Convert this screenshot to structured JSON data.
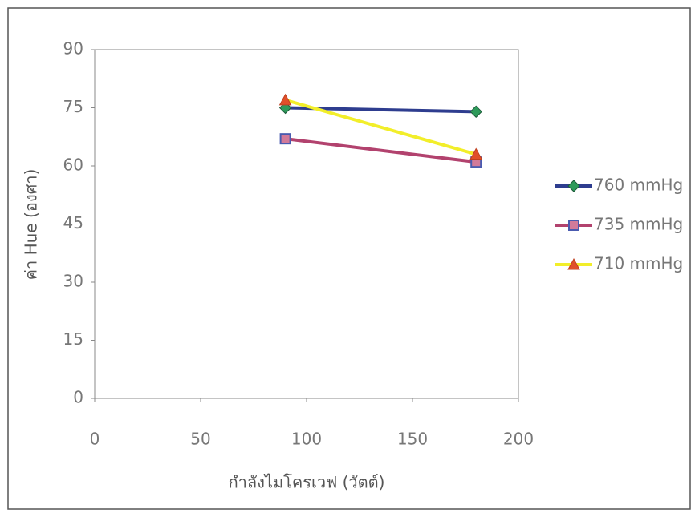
{
  "chart_data": {
    "type": "line",
    "x_label": "กำลังไมโครเวฟ (วัตต์)",
    "y_label": "ค่า Hue (องศา)",
    "x": [
      90,
      180
    ],
    "series": [
      {
        "name": "760 mmHg",
        "color": "#2e3d8f",
        "marker": "diamond",
        "marker_color": "#2e9a5a",
        "values": [
          75,
          74
        ]
      },
      {
        "name": "735 mmHg",
        "color": "#b2426e",
        "marker": "square",
        "marker_color": "#4a5bb0",
        "values": [
          67,
          61
        ]
      },
      {
        "name": "710 mmHg",
        "color": "#f2ee2a",
        "marker": "triangle",
        "marker_color": "#e0502a",
        "values": [
          77,
          63
        ]
      }
    ],
    "xlim": [
      0,
      200
    ],
    "xticks": [
      0,
      50,
      100,
      150,
      200
    ],
    "ylim": [
      0,
      90
    ],
    "yticks": [
      0,
      15,
      30,
      45,
      60,
      75,
      90
    ],
    "grid": false,
    "legend": "right"
  }
}
